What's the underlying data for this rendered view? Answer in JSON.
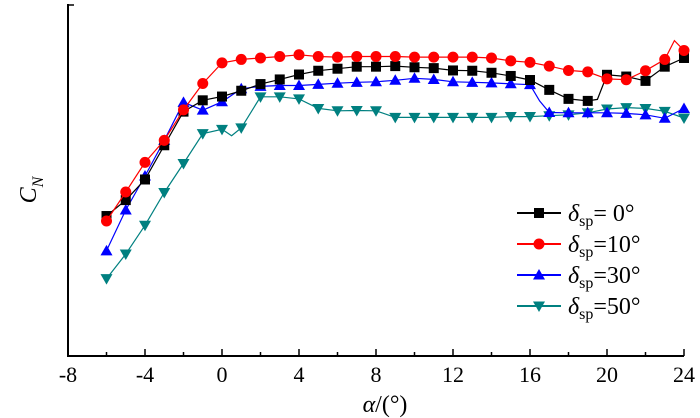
{
  "chart_data": {
    "type": "line",
    "title": "",
    "xlabel": {
      "symbol": "α",
      "unit": "/(°)"
    },
    "ylabel": {
      "symbol": "C",
      "subscript": "N"
    },
    "xlim": [
      -8,
      24
    ],
    "ylim": [
      0,
      1
    ],
    "x_ticks": [
      "-8",
      "-4",
      "0",
      "4",
      "8",
      "12",
      "16",
      "20",
      "24"
    ],
    "y_ticks": [],
    "legend_position": "bottom-right",
    "series": [
      {
        "name": "δsp= 0°",
        "legend": {
          "symbol": "δ",
          "sub": "sp",
          "value": "= 0°"
        },
        "color": "#000000",
        "marker": "square",
        "x": [
          -6,
          -5,
          -4,
          -3,
          -2,
          -1,
          0,
          1,
          2,
          3,
          4,
          5,
          6,
          7,
          8,
          9,
          10,
          11,
          12,
          13,
          14,
          15,
          16,
          17,
          18,
          19,
          19.5,
          20,
          21,
          22,
          23,
          24
        ],
        "y": [
          0.393,
          0.448,
          0.519,
          0.637,
          0.753,
          0.792,
          0.805,
          0.825,
          0.848,
          0.864,
          0.881,
          0.894,
          0.901,
          0.908,
          0.908,
          0.91,
          0.906,
          0.903,
          0.895,
          0.894,
          0.887,
          0.876,
          0.862,
          0.828,
          0.797,
          0.79,
          0.795,
          0.88,
          0.874,
          0.859,
          0.908,
          0.938
        ]
      },
      {
        "name": "δsp=10°",
        "legend": {
          "symbol": "δ",
          "sub": "sp",
          "value": "=10°"
        },
        "color": "#ff0000",
        "marker": "circle",
        "x": [
          -6,
          -5,
          -4,
          -3,
          -2,
          -1,
          0,
          1,
          2,
          3,
          4,
          5,
          6,
          7,
          8,
          9,
          10,
          11,
          12,
          13,
          14,
          15,
          16,
          17,
          18,
          19,
          20,
          21,
          22,
          23,
          23.5,
          24
        ],
        "y": [
          0.376,
          0.476,
          0.578,
          0.654,
          0.759,
          0.85,
          0.921,
          0.933,
          0.938,
          0.943,
          0.949,
          0.943,
          0.941,
          0.943,
          0.943,
          0.943,
          0.941,
          0.941,
          0.941,
          0.941,
          0.938,
          0.928,
          0.923,
          0.91,
          0.895,
          0.89,
          0.866,
          0.863,
          0.894,
          0.933,
          0.998,
          0.964
        ]
      },
      {
        "name": "δsp=30°",
        "legend": {
          "symbol": "δ",
          "sub": "sp",
          "value": "=30°"
        },
        "color": "#0000ff",
        "marker": "triangle-up",
        "x": [
          -6,
          -5,
          -4,
          -3,
          -2,
          -1,
          0,
          1,
          2,
          3,
          4,
          5,
          6,
          7,
          8,
          9,
          10,
          11,
          12,
          13,
          14,
          15,
          16,
          16.5,
          17,
          18,
          19,
          20,
          21,
          22,
          23,
          24
        ],
        "y": [
          0.273,
          0.414,
          0.531,
          0.654,
          0.785,
          0.758,
          0.787,
          0.832,
          0.84,
          0.843,
          0.843,
          0.847,
          0.851,
          0.854,
          0.856,
          0.861,
          0.868,
          0.864,
          0.856,
          0.854,
          0.852,
          0.849,
          0.846,
          0.79,
          0.75,
          0.749,
          0.749,
          0.749,
          0.747,
          0.742,
          0.73,
          0.764
        ]
      },
      {
        "name": "δsp=50°",
        "legend": {
          "symbol": "δ",
          "sub": "sp",
          "value": "=50°"
        },
        "color": "#008080",
        "marker": "triangle-down",
        "x": [
          -6,
          -5,
          -4,
          -3,
          -2,
          -1,
          0,
          0.5,
          1,
          2,
          3,
          4,
          5,
          6,
          7,
          8,
          9,
          10,
          11,
          12,
          13,
          14,
          15,
          16,
          17,
          18,
          19,
          20,
          21,
          22,
          23,
          24
        ],
        "y": [
          0.177,
          0.262,
          0.361,
          0.474,
          0.574,
          0.677,
          0.692,
          0.67,
          0.697,
          0.804,
          0.804,
          0.797,
          0.764,
          0.756,
          0.757,
          0.756,
          0.733,
          0.733,
          0.733,
          0.733,
          0.733,
          0.733,
          0.736,
          0.736,
          0.739,
          0.742,
          0.749,
          0.762,
          0.767,
          0.764,
          0.754,
          0.731
        ]
      }
    ]
  }
}
